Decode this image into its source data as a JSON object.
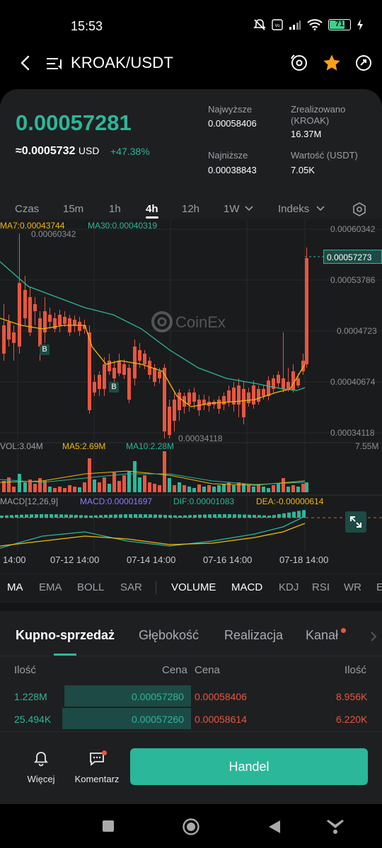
{
  "status_bar": {
    "time": "15:53",
    "battery": "71"
  },
  "header": {
    "pair": "KROAK/USDT"
  },
  "ticker": {
    "last_price": "0.00057281",
    "usd_approx": "≈0.0005732",
    "usd_unit": "USD",
    "change": "+47.38%",
    "high_label": "Najwyższe",
    "high_value": "0.00058406",
    "volume_label": "Zrealizowano (KROAK)",
    "volume_value": "16.37M",
    "low_label": "Najniższe",
    "low_value": "0.00038843",
    "value_label": "Wartość (USDT)",
    "value_value": "7.05K"
  },
  "timeframes": [
    "Czas",
    "15m",
    "1h",
    "4h",
    "12h",
    "1W",
    "Indeks"
  ],
  "active_timeframe": "4h",
  "chart": {
    "ma7": "MA7:0.00043744",
    "ma30": "MA30:0.00040319",
    "price_axis": [
      "0.00060342",
      "0.00053786",
      "0.0004723",
      "0.00040674",
      "0.00034118"
    ],
    "current_price_tag": "0.00057273",
    "high_marker": "0.00060342",
    "low_marker": "0.00034118",
    "watermark": "CoinEx",
    "vol": "VOL:3.04M",
    "ma5": "MA5:2.69M",
    "ma10": "MA10:2.28M",
    "vol_axis": "7.55M",
    "macd_label": "MACD[12,26,9]",
    "macd": "MACD:0.00001697",
    "dif": "DIF:0.00001083",
    "dea": "DEA:-0.00000614",
    "dates": [
      "14:00",
      "07-12 14:00",
      "07-14 14:00",
      "07-16 14:00",
      "07-18 14:00"
    ],
    "b_marker": "B",
    "colors": {
      "up": "#2bb79a",
      "down": "#e8563f",
      "ma7": "#f0b90b",
      "ma30": "#2bb79a"
    }
  },
  "indicators": [
    "MA",
    "EMA",
    "BOLL",
    "SAR",
    "VOLUME",
    "MACD",
    "KDJ",
    "RSI",
    "WR",
    "E"
  ],
  "tabs": [
    "Kupno-sprzedaż",
    "Głębokość",
    "Realizacja",
    "Kanał"
  ],
  "orderbook": {
    "h_qty_left": "Ilość",
    "h_price_left": "Cena",
    "h_price_right": "Cena",
    "h_qty_right": "Ilość",
    "rows": [
      {
        "bid_qty": "1.228M",
        "bid_price": "0.00057280",
        "ask_price": "0.00058406",
        "ask_qty": "8.956K"
      },
      {
        "bid_qty": "25.494K",
        "bid_price": "0.00057260",
        "ask_price": "0.00058614",
        "ask_qty": "6.220K"
      }
    ]
  },
  "bottom": {
    "more": "Więcej",
    "comment": "Komentarz",
    "trade": "Handel"
  }
}
